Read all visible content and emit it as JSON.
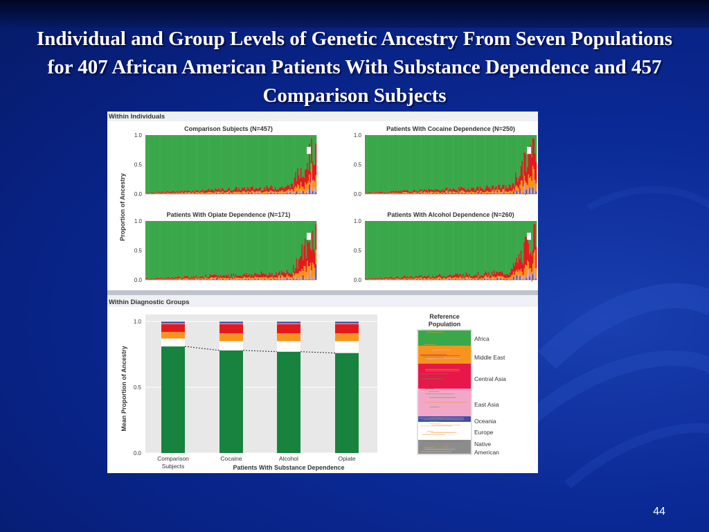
{
  "slide": {
    "title": "Individual and Group Levels of Genetic Ancestry From Seven Populations for 407 African American Patients With Substance Dependence and 457 Comparison Subjects",
    "page_number": "44"
  },
  "colors": {
    "Africa": "#3aa84a",
    "Middle East": "#f7941d",
    "Central Asia": "#e8174a",
    "East Asia": "#f2a7c8",
    "Oceania": "#3d4fa8",
    "Europe": "#ffffff",
    "Native American": "#8c8c8c",
    "bar_africa": "#17833e",
    "red": "#e31a1c"
  },
  "chart_data": [
    {
      "type": "area",
      "section": "Within Individuals",
      "title": "Comparison Subjects (N=457)",
      "ylabel": "Proportion of Ancestry",
      "ylim": [
        0,
        1
      ],
      "yticks": [
        "1.0",
        "0.5",
        "0.0"
      ],
      "n": 457,
      "africa_sorted_min": 0.0,
      "africa_sorted_max": 0.98,
      "order": "descending African ancestry"
    },
    {
      "type": "area",
      "section": "Within Individuals",
      "title": "Patients With Cocaine Dependence (N=250)",
      "ylim": [
        0,
        1
      ],
      "yticks": [
        "1.0",
        "0.5",
        "0.0"
      ],
      "n": 250,
      "order": "descending African ancestry"
    },
    {
      "type": "area",
      "section": "Within Individuals",
      "title": "Patients With Opiate Dependence (N=171)",
      "ylim": [
        0,
        1
      ],
      "yticks": [
        "1.0",
        "0.5",
        "0.0"
      ],
      "n": 171,
      "order": "descending African ancestry"
    },
    {
      "type": "area",
      "section": "Within Individuals",
      "title": "Patients With Alcohol Dependence (N=260)",
      "ylim": [
        0,
        1
      ],
      "yticks": [
        "1.0",
        "0.5",
        "0.0"
      ],
      "n": 260,
      "order": "descending African ancestry"
    },
    {
      "type": "bar",
      "section": "Within Diagnostic Groups",
      "ylabel": "Mean Proportion of Ancestry",
      "xlabel": "Patients With Substance Dependence",
      "ylim": [
        0,
        1
      ],
      "yticks": [
        "1.0",
        "0.5",
        "0.0"
      ],
      "categories": [
        "Comparison Subjects",
        "Cocaine",
        "Alcohol",
        "Opiate"
      ],
      "category_lines": [
        [
          "Comparison",
          "Subjects"
        ],
        [
          "Cocaine"
        ],
        [
          "Alcohol"
        ],
        [
          "Opiate"
        ]
      ],
      "series": [
        {
          "name": "Africa",
          "values": [
            0.81,
            0.78,
            0.77,
            0.76
          ]
        },
        {
          "name": "Europe",
          "values": [
            0.06,
            0.07,
            0.08,
            0.09
          ]
        },
        {
          "name": "Middle East",
          "values": [
            0.05,
            0.06,
            0.06,
            0.06
          ]
        },
        {
          "name": "Central Asia",
          "values": [
            0.06,
            0.07,
            0.07,
            0.07
          ]
        },
        {
          "name": "East Asia",
          "values": [
            0.005,
            0.005,
            0.005,
            0.005
          ]
        },
        {
          "name": "Oceania",
          "values": [
            0.01,
            0.01,
            0.01,
            0.01
          ]
        },
        {
          "name": "Native American",
          "values": [
            0.005,
            0.005,
            0.005,
            0.005
          ]
        }
      ],
      "trend_line": "dashed line connecting Africa bar tops"
    }
  ],
  "labels": {
    "within_individuals": "Within Individuals",
    "within_groups": "Within Diagnostic Groups",
    "legend_title_1": "Reference",
    "legend_title_2": "Population",
    "legend_items": [
      "Africa",
      "Middle East",
      "Central Asia",
      "East Asia",
      "Oceania",
      "Europe",
      "Native",
      "American"
    ]
  }
}
